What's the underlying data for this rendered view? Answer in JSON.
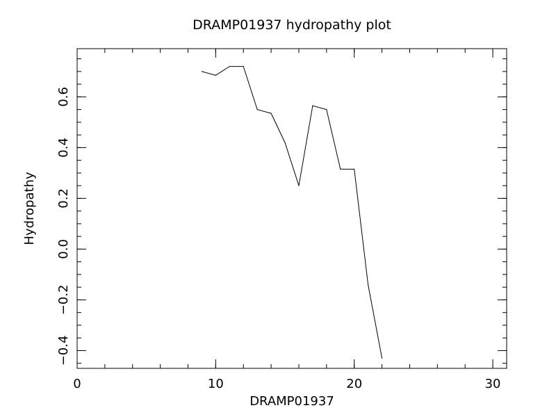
{
  "chart_data": {
    "type": "line",
    "title": "DRAMP01937 hydropathy plot",
    "xlabel": "DRAMP01937",
    "ylabel": "Hydropathy",
    "xlim": [
      0,
      31
    ],
    "ylim": [
      -0.47,
      0.79
    ],
    "grid": false,
    "x_major_ticks": [
      0,
      10,
      20,
      30
    ],
    "x_tick_labels": [
      "0",
      "10",
      "20",
      "30"
    ],
    "x_minor_step": 2,
    "y_major_ticks": [
      -0.4,
      -0.2,
      0.0,
      0.2,
      0.4,
      0.6
    ],
    "y_tick_labels": [
      "−0.4",
      "−0.2",
      "0.0",
      "0.2",
      "0.4",
      "0.6"
    ],
    "y_minor_step": 0.05,
    "series": [
      {
        "name": "hydropathy",
        "x": [
          9,
          10,
          11,
          12,
          13,
          14,
          15,
          16,
          17,
          18,
          19,
          20,
          21,
          22
        ],
        "y": [
          0.7,
          0.685,
          0.72,
          0.72,
          0.55,
          0.535,
          0.42,
          0.25,
          0.565,
          0.55,
          0.315,
          0.315,
          -0.14,
          -0.43
        ]
      }
    ],
    "colors": {
      "line": "#000000",
      "axes": "#000000",
      "text": "#000000"
    }
  }
}
